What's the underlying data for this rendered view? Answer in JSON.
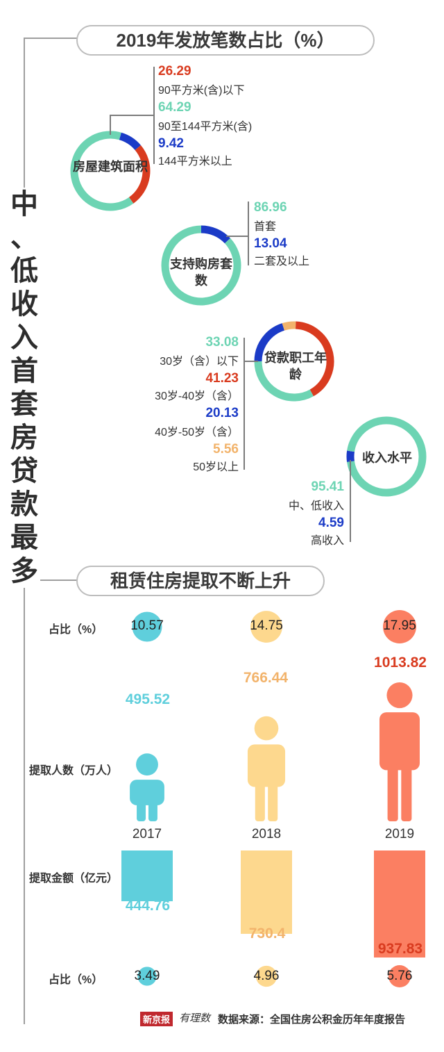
{
  "title_vertical": [
    "中",
    "、",
    "低",
    "收",
    "入",
    "首",
    "套",
    "房",
    "贷",
    "款",
    "最",
    "多"
  ],
  "section1_title": "2019年发放笔数占比（%）",
  "section2_title": "租赁住房提取不断上升",
  "colors": {
    "teal": "#6dd4b3",
    "red": "#d93b1f",
    "blue": "#1b3bc7",
    "orange": "#f2b36b",
    "cyan": "#5fcfdc",
    "yellow": "#fdd88e",
    "salmon": "#fb7f62"
  },
  "chart_data": [
    {
      "type": "pie",
      "title": "房屋建筑面积",
      "categories": [
        "90平方米(含)以下",
        "90至144平方米(含)",
        "144平方米以上"
      ],
      "values": [
        26.29,
        64.29,
        9.42
      ],
      "value_labels": [
        "26.29",
        "64.29",
        "9.42"
      ]
    },
    {
      "type": "pie",
      "title": "支持购房套数",
      "categories": [
        "首套",
        "二套及以上"
      ],
      "values": [
        86.96,
        13.04
      ],
      "value_labels": [
        "86.96",
        "13.04"
      ]
    },
    {
      "type": "pie",
      "title": "贷款职工年龄",
      "categories": [
        "30岁（含）以下",
        "30岁-40岁（含）",
        "40岁-50岁（含）",
        "50岁以上"
      ],
      "values": [
        33.08,
        41.23,
        20.13,
        5.56
      ],
      "value_labels": [
        "33.08",
        "41.23",
        "20.13",
        "5.56"
      ]
    },
    {
      "type": "pie",
      "title": "收入水平",
      "categories": [
        "中、低收入",
        "高收入"
      ],
      "values": [
        95.41,
        4.59
      ],
      "value_labels": [
        "95.41",
        "4.59"
      ]
    },
    {
      "type": "bar",
      "categories": [
        "2017",
        "2018",
        "2019"
      ],
      "series": [
        {
          "name": "占比（%）",
          "values": [
            10.57,
            14.75,
            17.95
          ],
          "labels": [
            "10.57",
            "14.75",
            "17.95"
          ]
        },
        {
          "name": "提取人数（万人）",
          "values": [
            495.52,
            766.44,
            1013.82
          ],
          "labels": [
            "495.52",
            "766.44",
            "1013.82"
          ]
        },
        {
          "name": "提取金额（亿元）",
          "values": [
            444.76,
            730.4,
            937.83
          ],
          "labels": [
            "444.76",
            "730.4",
            "937.83"
          ]
        },
        {
          "name": "占比（%）",
          "values": [
            3.49,
            4.96,
            5.76
          ],
          "labels": [
            "3.49",
            "4.96",
            "5.76"
          ]
        }
      ]
    }
  ],
  "footer": {
    "brand": "新京报",
    "brand2": "有理数",
    "source": "数据来源：全国住房公积金历年年度报告"
  }
}
